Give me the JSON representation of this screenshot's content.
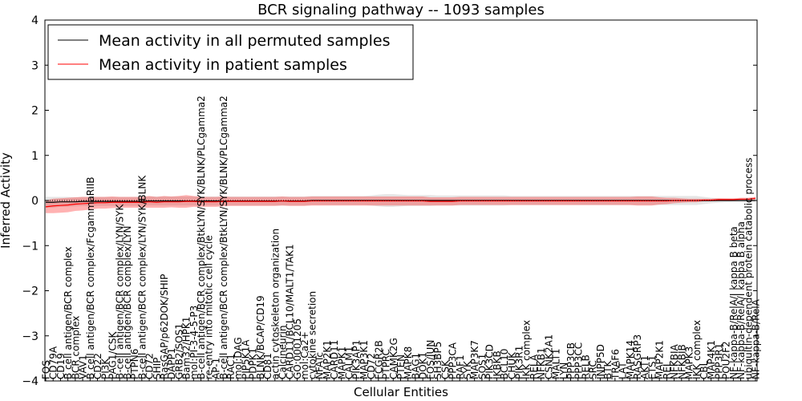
{
  "chart_data": {
    "type": "line",
    "title": "BCR signaling pathway -- 1093 samples",
    "xlabel": "Cellular Entities",
    "ylabel": "Inferred Activity",
    "ylim": [
      -4,
      4
    ],
    "yticks": [
      -4,
      -3,
      -2,
      -1,
      0,
      1,
      2,
      3,
      4
    ],
    "legend_position": "top-left",
    "categories": [
      "FOS",
      "CD79A",
      "CD19",
      "B cell antigen/BCR complex",
      "BCR complex",
      "VAV1",
      "B cell antigen/BCR complex/FcgammaRIIB",
      "CD22",
      "PI3K",
      "PAG1/CSK",
      "B-cell antigen/BCR complex/LYN/SYK",
      "B-cell antigen/BCR complex/LYN",
      "PTPN6",
      "B-cell antigen/BCR complex/LYN/SYK/BLNK",
      "CD72",
      "SHIP",
      "RasGAP/p62DOK/SHIP",
      "DAPP1",
      "GRB2/SOS1",
      "Bam32/HPK1",
      "mol:PI-3-4-5-P3",
      "B-cell antigen/BCR complex/BtkLYN/SYK/BLNK/PLCgamma2",
      "re-entry into mitotic cell cycle",
      "AP-1",
      "B-cell antigen/BCR complex/BtkLYN/SYK/BLNK/PLCgamma2",
      "RAC1",
      "mol:DAG",
      "PIP5K1A",
      "PDPK1",
      "BLNK/BCAP/CD19",
      "CD81",
      "actin cytoskeleton organization",
      "Calcineurin",
      "CARD11/BCL10/MALT1/TAK1",
      "GO:0001205",
      "mol:Ca2+",
      "cytokine secretion",
      "NFATc",
      "MAP2K1",
      "CARD11",
      "MAPK1",
      "CALM1",
      "PIK3AP1",
      "MAP3K1",
      "CD72",
      "FCGR2B",
      "PTPRC",
      "CAMK2G",
      "PTEN",
      "MAPK8",
      "BAG1",
      "DOK1",
      "FOS/JUN",
      "SH3BP5",
      "CSK",
      "PPP3CA",
      "RAF1",
      "SYK",
      "MAP3K7",
      "SOS1",
      "PIK3CD",
      "IKBKB",
      "BCL10",
      "CHUK",
      "PIK3R1",
      "IKK complex",
      "RELA",
      "NFKB1",
      "CSNK2A1",
      "MALT1",
      "LYN",
      "PPP3CB",
      "PPP3CC",
      "RELB",
      "SRC",
      "INPP5D",
      "BTK",
      "TRAF6",
      "LAT",
      "MAPK14",
      "RASGRP3",
      "AKT1",
      "ETS1",
      "MAP2K1",
      "REL",
      "NFKBIA",
      "NFKBIB",
      "MAPK3",
      "IKK complex",
      "CBL",
      "MAP4K1",
      "PPP3R1",
      "POU2F2",
      "NF-kappa-B/RelA/I kappa B beta",
      "NF-kappa-B/RelA/I kappa B alpha",
      "ubiquitin-dependent protein catabolic process",
      "NF-kappa-B/RelA"
    ],
    "series": [
      {
        "name": "Mean activity in all permuted samples",
        "color": "#000000",
        "values": [
          -0.04,
          -0.04,
          -0.03,
          -0.03,
          -0.03,
          -0.02,
          -0.02,
          -0.02,
          -0.02,
          -0.02,
          -0.02,
          -0.02,
          -0.02,
          -0.02,
          -0.01,
          -0.01,
          -0.01,
          -0.01,
          -0.01,
          -0.01,
          -0.01,
          -0.01,
          -0.01,
          -0.01,
          -0.01,
          -0.01,
          -0.01,
          -0.01,
          -0.01,
          -0.01,
          -0.01,
          -0.01,
          -0.01,
          -0.01,
          -0.01,
          -0.01,
          0.0,
          0.0,
          0.0,
          0.0,
          0.0,
          0.0,
          0.0,
          0.0,
          0.0,
          0.0,
          0.0,
          0.0,
          0.0,
          0.0,
          0.0,
          0.0,
          0.0,
          0.0,
          0.0,
          0.0,
          0.0,
          0.0,
          0.0,
          0.0,
          0.0,
          0.0,
          0.0,
          0.0,
          0.0,
          0.0,
          0.0,
          0.0,
          0.0,
          0.0,
          0.0,
          0.0,
          0.0,
          0.0,
          0.0,
          0.0,
          0.0,
          0.0,
          0.0,
          0.0,
          0.0,
          0.0,
          0.0,
          0.0,
          0.0,
          0.0,
          0.0,
          0.0,
          0.0,
          0.0,
          0.0,
          0.0,
          0.0,
          0.0,
          0.0,
          0.0,
          0.0
        ],
        "band": [
          0.12,
          0.12,
          0.11,
          0.11,
          0.1,
          0.1,
          0.1,
          0.1,
          0.1,
          0.1,
          0.1,
          0.1,
          0.1,
          0.1,
          0.1,
          0.1,
          0.1,
          0.1,
          0.1,
          0.1,
          0.1,
          0.1,
          0.1,
          0.1,
          0.1,
          0.1,
          0.1,
          0.1,
          0.1,
          0.1,
          0.1,
          0.1,
          0.1,
          0.1,
          0.1,
          0.1,
          0.1,
          0.1,
          0.1,
          0.1,
          0.1,
          0.1,
          0.1,
          0.1,
          0.11,
          0.13,
          0.14,
          0.14,
          0.13,
          0.12,
          0.12,
          0.12,
          0.12,
          0.11,
          0.11,
          0.11,
          0.11,
          0.11,
          0.11,
          0.11,
          0.11,
          0.11,
          0.11,
          0.1,
          0.1,
          0.1,
          0.1,
          0.1,
          0.1,
          0.1,
          0.1,
          0.1,
          0.1,
          0.1,
          0.1,
          0.1,
          0.1,
          0.1,
          0.1,
          0.1,
          0.1,
          0.1,
          0.1,
          0.1,
          0.1,
          0.1,
          0.1,
          0.1,
          0.1,
          0.08,
          0.06,
          0.05,
          0.04,
          0.03,
          0.03,
          0.03,
          0.03
        ]
      },
      {
        "name": "Mean activity in patient samples",
        "color": "#ff0000",
        "values": [
          -0.14,
          -0.12,
          -0.11,
          -0.1,
          -0.08,
          -0.07,
          -0.06,
          -0.05,
          -0.05,
          -0.04,
          -0.04,
          -0.04,
          -0.04,
          -0.04,
          -0.03,
          -0.04,
          -0.03,
          -0.03,
          -0.03,
          -0.02,
          -0.02,
          -0.03,
          -0.03,
          -0.03,
          -0.02,
          -0.02,
          -0.02,
          -0.02,
          -0.02,
          -0.02,
          -0.02,
          -0.02,
          -0.01,
          -0.02,
          -0.02,
          -0.02,
          -0.01,
          -0.01,
          -0.01,
          -0.01,
          -0.01,
          -0.01,
          -0.01,
          -0.01,
          -0.01,
          -0.01,
          -0.01,
          -0.01,
          -0.01,
          -0.01,
          -0.01,
          -0.01,
          -0.02,
          -0.02,
          -0.02,
          -0.02,
          -0.01,
          -0.01,
          -0.01,
          -0.01,
          -0.01,
          -0.01,
          -0.01,
          -0.01,
          -0.01,
          -0.01,
          -0.01,
          -0.01,
          -0.01,
          -0.01,
          -0.01,
          -0.01,
          -0.01,
          -0.01,
          -0.01,
          -0.01,
          -0.01,
          -0.01,
          -0.01,
          -0.01,
          -0.01,
          -0.01,
          -0.01,
          -0.01,
          -0.01,
          0.0,
          0.0,
          0.0,
          0.0,
          0.01,
          0.01,
          0.02,
          0.02,
          0.02,
          0.03,
          0.03,
          0.05
        ],
        "band": [
          0.14,
          0.16,
          0.16,
          0.16,
          0.15,
          0.15,
          0.14,
          0.13,
          0.13,
          0.13,
          0.12,
          0.12,
          0.12,
          0.12,
          0.13,
          0.12,
          0.13,
          0.12,
          0.13,
          0.14,
          0.12,
          0.11,
          0.11,
          0.11,
          0.11,
          0.1,
          0.1,
          0.1,
          0.1,
          0.1,
          0.1,
          0.1,
          0.1,
          0.1,
          0.1,
          0.1,
          0.1,
          0.1,
          0.1,
          0.1,
          0.1,
          0.1,
          0.1,
          0.1,
          0.1,
          0.1,
          0.1,
          0.1,
          0.1,
          0.1,
          0.1,
          0.1,
          0.09,
          0.09,
          0.09,
          0.09,
          0.09,
          0.09,
          0.09,
          0.09,
          0.09,
          0.09,
          0.09,
          0.09,
          0.09,
          0.09,
          0.09,
          0.09,
          0.09,
          0.09,
          0.09,
          0.09,
          0.09,
          0.09,
          0.09,
          0.09,
          0.09,
          0.09,
          0.09,
          0.09,
          0.1,
          0.1,
          0.1,
          0.08,
          0.07,
          0.06,
          0.05,
          0.04,
          0.04,
          0.03,
          0.03,
          0.03,
          0.03,
          0.03,
          0.03,
          0.03,
          0.03
        ]
      }
    ]
  }
}
